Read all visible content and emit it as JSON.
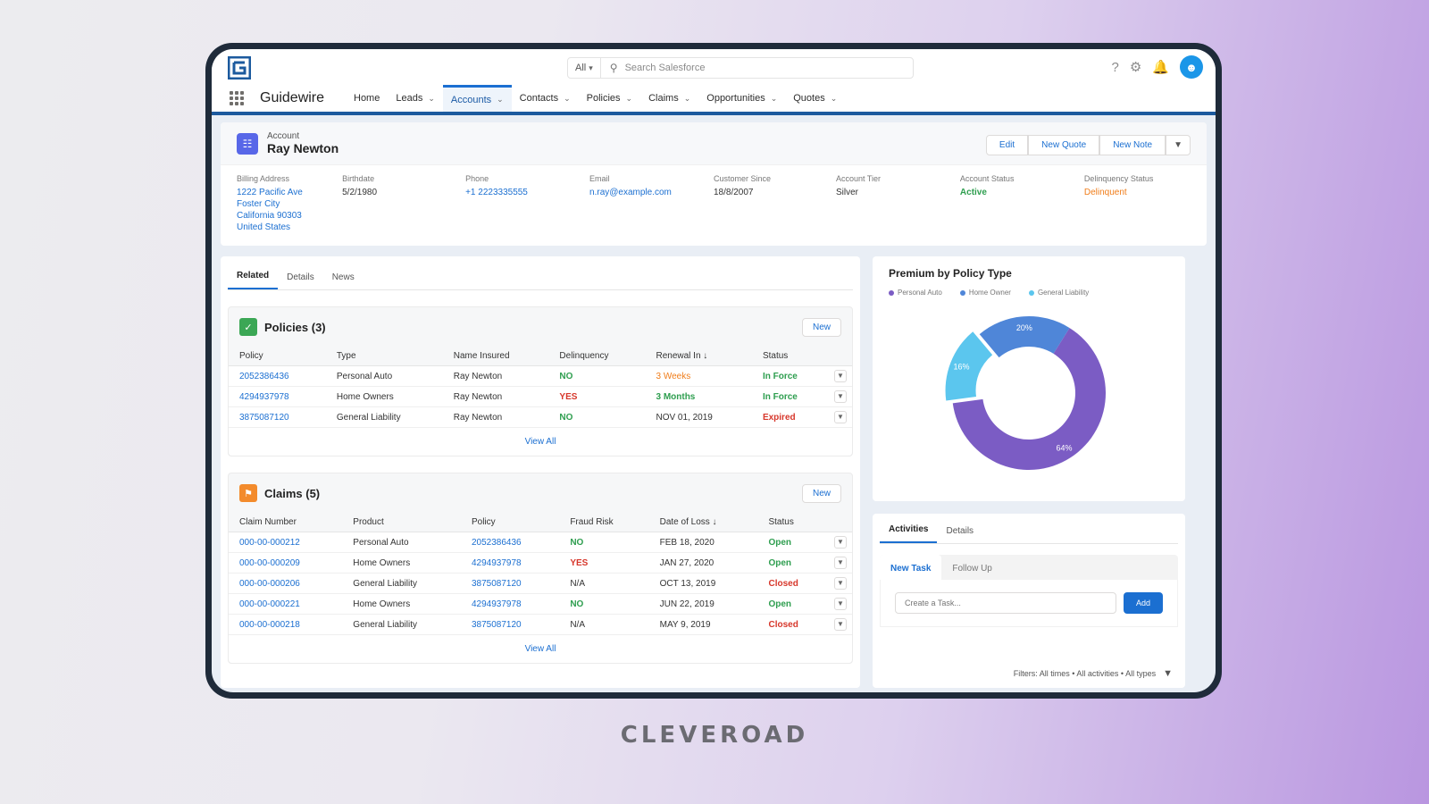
{
  "caption": "CLEVEROAD",
  "topbar": {
    "search_scope": "All",
    "search_placeholder": "Search Salesforce"
  },
  "nav": {
    "app_name": "Guidewire",
    "items": [
      {
        "label": "Home",
        "dropdown": false
      },
      {
        "label": "Leads",
        "dropdown": true
      },
      {
        "label": "Accounts",
        "dropdown": true,
        "active": true
      },
      {
        "label": "Contacts",
        "dropdown": true
      },
      {
        "label": "Policies",
        "dropdown": true
      },
      {
        "label": "Claims",
        "dropdown": true
      },
      {
        "label": "Opportunities",
        "dropdown": true
      },
      {
        "label": "Quotes",
        "dropdown": true
      }
    ]
  },
  "account": {
    "kind": "Account",
    "name": "Ray Newton",
    "actions": {
      "edit": "Edit",
      "new_quote": "New Quote",
      "new_note": "New Note"
    },
    "fields": {
      "billing_label": "Billing Address",
      "billing_lines": [
        "1222 Pacific Ave",
        "Foster City",
        "California 90303",
        "United States"
      ],
      "birthdate_label": "Birthdate",
      "birthdate": "5/2/1980",
      "phone_label": "Phone",
      "phone": "+1 2223335555",
      "email_label": "Email",
      "email": "n.ray@example.com",
      "customer_since_label": "Customer Since",
      "customer_since": "18/8/2007",
      "tier_label": "Account Tier",
      "tier": "Silver",
      "status_label": "Account Status",
      "status": "Active",
      "delinquency_label": "Delinquency Status",
      "delinquency": "Delinquent"
    }
  },
  "main_tabs": [
    "Related",
    "Details",
    "News"
  ],
  "policies": {
    "title": "Policies (3)",
    "new_label": "New",
    "columns": [
      "Policy",
      "Type",
      "Name Insured",
      "Delinquency",
      "Renewal In ↓",
      "Status"
    ],
    "rows": [
      [
        "2052386436",
        "Personal Auto",
        "Ray Newton",
        "NO",
        "3 Weeks",
        "In Force"
      ],
      [
        "4294937978",
        "Home Owners",
        "Ray Newton",
        "YES",
        "3 Months",
        "In Force"
      ],
      [
        "3875087120",
        "General Liability",
        "Ray Newton",
        "NO",
        "NOV 01, 2019",
        "Expired"
      ]
    ],
    "view_all": "View All"
  },
  "claims": {
    "title": "Claims (5)",
    "new_label": "New",
    "columns": [
      "Claim Number",
      "Product",
      "Policy",
      "Fraud Risk",
      "Date of Loss ↓",
      "Status"
    ],
    "rows": [
      [
        "000-00-000212",
        "Personal Auto",
        "2052386436",
        "NO",
        "FEB 18, 2020",
        "Open"
      ],
      [
        "000-00-000209",
        "Home Owners",
        "4294937978",
        "YES",
        "JAN 27, 2020",
        "Open"
      ],
      [
        "000-00-000206",
        "General Liability",
        "3875087120",
        "N/A",
        "OCT 13, 2019",
        "Closed"
      ],
      [
        "000-00-000221",
        "Home Owners",
        "4294937978",
        "NO",
        "JUN 22, 2019",
        "Open"
      ],
      [
        "000-00-000218",
        "General Liability",
        "3875087120",
        "N/A",
        "MAY 9, 2019",
        "Closed"
      ]
    ],
    "view_all": "View All"
  },
  "chart_data": {
    "type": "pie",
    "title": "Premium by Policy Type",
    "categories": [
      "Personal Auto",
      "Home Owner",
      "General Liability"
    ],
    "values": [
      64,
      20,
      16
    ],
    "value_labels": [
      "64%",
      "20%",
      "16%"
    ],
    "colors": [
      "#7b5cc4",
      "#4f86d8",
      "#5bc6ee"
    ],
    "legend_position": "top"
  },
  "activities": {
    "tabs": [
      "Activities",
      "Details"
    ],
    "subtabs": [
      "New Task",
      "Follow Up"
    ],
    "task_placeholder": "Create a Task...",
    "add_label": "Add",
    "filters": "Filters: All times • All activities • All types"
  }
}
